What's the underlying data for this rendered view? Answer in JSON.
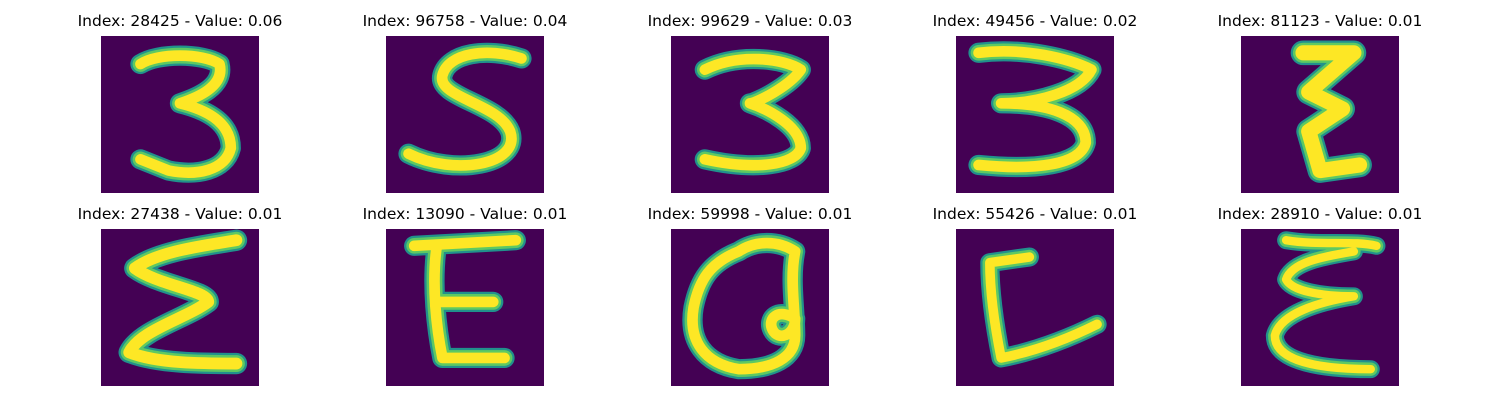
{
  "colors": {
    "background": "#440154",
    "stroke_edge": "#21918c",
    "stroke_mid": "#5ec962",
    "stroke_core": "#fde725"
  },
  "images": [
    {
      "title": "Index: 28425 - Value: 0.06",
      "glyph": "digit-3-icon"
    },
    {
      "title": "Index: 96758 - Value: 0.04",
      "glyph": "letter-s-icon"
    },
    {
      "title": "Index: 99629 - Value: 0.03",
      "glyph": "digit-3-icon"
    },
    {
      "title": "Index: 49456 - Value: 0.02",
      "glyph": "digit-3-icon"
    },
    {
      "title": "Index: 81123 - Value: 0.01",
      "glyph": "digit-3-icon"
    },
    {
      "title": "Index: 27438 - Value: 0.01",
      "glyph": "sigma-icon"
    },
    {
      "title": "Index: 13090 - Value: 0.01",
      "glyph": "letter-e-icon"
    },
    {
      "title": "Index: 59998 - Value: 0.01",
      "glyph": "letter-a-icon"
    },
    {
      "title": "Index: 55426 - Value: 0.01",
      "glyph": "letter-l-icon"
    },
    {
      "title": "Index: 28910 - Value: 0.01",
      "glyph": "letter-e-icon"
    }
  ]
}
